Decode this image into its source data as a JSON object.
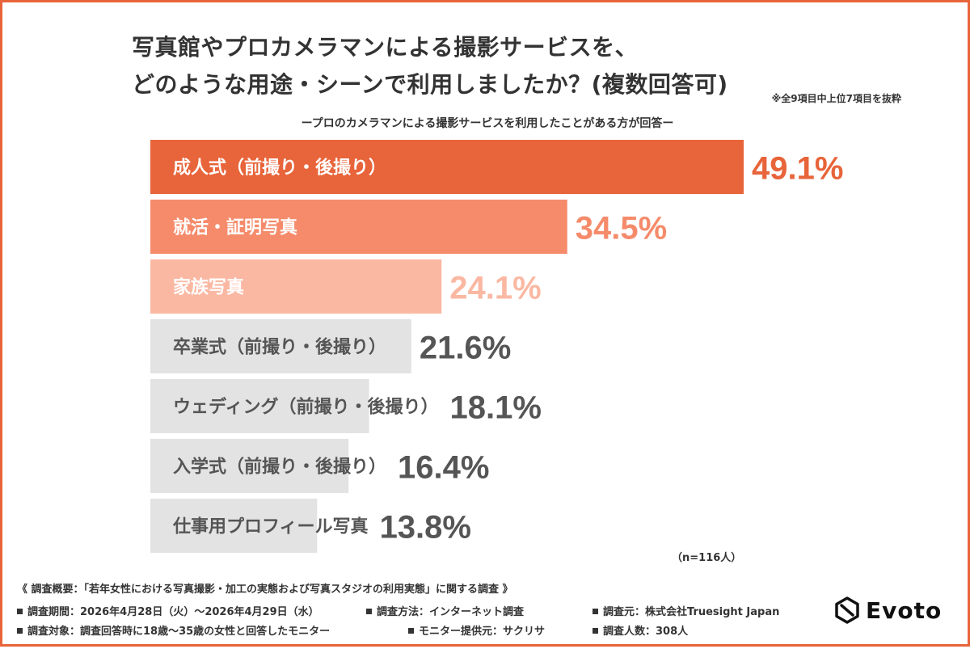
{
  "title_line1": "写真館やプロカメラマンによる撮影サービスを、",
  "title_line2": "どのような用途・シーンで利用しましたか？(複数回答可)",
  "note": "※全9項目中上位7項目を抜粋",
  "subtitle": "ープロのカメラマンによる撮影サービスを利用したことがある方が回答ー",
  "sample": "（n=116人）",
  "chart_data": {
    "type": "bar",
    "orientation": "horizontal",
    "categories": [
      "成人式（前撮り・後撮り）",
      "就活・証明写真",
      "家族写真",
      "卒業式（前撮り・後撮り）",
      "ウェディング（前撮り・後撮り）",
      "入学式（前撮り・後撮り）",
      "仕事用プロフィール写真"
    ],
    "values": [
      49.1,
      34.5,
      24.1,
      21.6,
      18.1,
      16.4,
      13.8
    ],
    "value_labels": [
      "49.1%",
      "34.5%",
      "24.1%",
      "21.6%",
      "18.1%",
      "16.4%",
      "13.8%"
    ],
    "bar_colors": [
      "#e8643a",
      "#f58b6b",
      "#fab8a3",
      "#e3e3e3",
      "#e3e3e3",
      "#e3e3e3",
      "#e3e3e3"
    ],
    "category_label_colors": [
      "#ffffff",
      "#ffffff",
      "#ffffff",
      "#555555",
      "#555555",
      "#555555",
      "#555555"
    ],
    "value_label_colors": [
      "#e8643a",
      "#f58b6b",
      "#fab8a3",
      "#555555",
      "#555555",
      "#555555",
      "#555555"
    ],
    "xlim": [
      0,
      49.1
    ],
    "grid": false,
    "legend": "none"
  },
  "survey": {
    "title": "《 調査概要：「若年女性における写真撮影・加工の実態および写真スタジオの利用実態」に関する調査 》",
    "period": "調査期間：2026年4月28日（火）〜2026年4月29日（水）",
    "method": "調査方法：インターネット調査",
    "source": "調査元：株式会社Truesight Japan",
    "target": "調査対象：調査回答時に18歳〜35歳の女性と回答したモニター",
    "monitor": "モニター提供元：サクリサ",
    "count": "調査人数：308人"
  },
  "logo": {
    "text": "Evoto",
    "icon": "evoto-logo-icon"
  },
  "colors": {
    "accent": "#e8643a",
    "text": "#333333"
  }
}
